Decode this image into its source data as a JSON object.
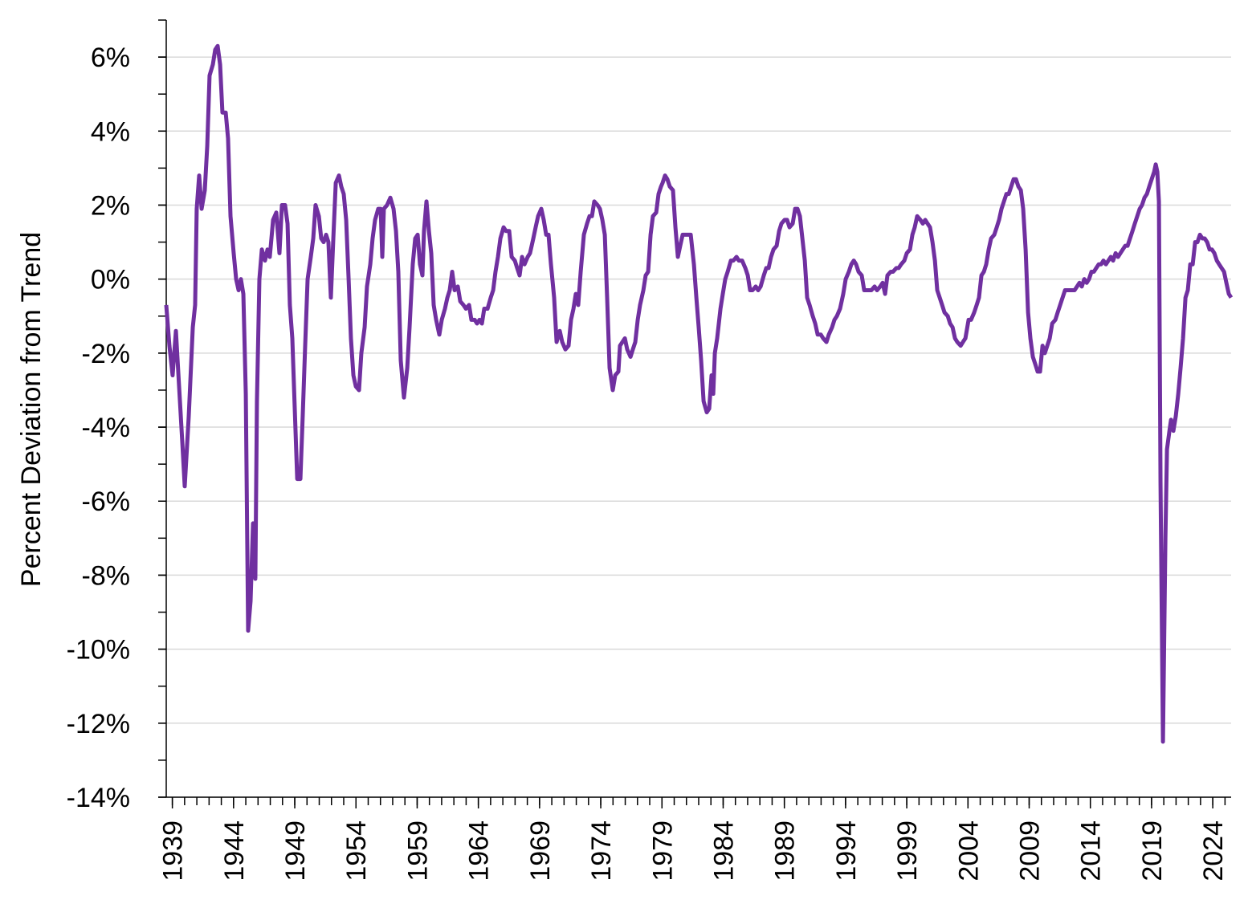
{
  "chart_data": {
    "type": "line",
    "y_label": "Percent Deviation from Trend",
    "color": "#7030a0",
    "xlim": [
      1938.5,
      2025.5
    ],
    "ylim": [
      -14,
      7
    ],
    "xticks": [
      1939,
      1944,
      1949,
      1954,
      1959,
      1964,
      1969,
      1974,
      1979,
      1984,
      1989,
      1994,
      1999,
      2004,
      2009,
      2014,
      2019,
      2024
    ],
    "yticks": [
      {
        "value": -14,
        "label": "-14%"
      },
      {
        "value": -12,
        "label": "-12%"
      },
      {
        "value": -10,
        "label": "-10%"
      },
      {
        "value": -8,
        "label": "-8%"
      },
      {
        "value": -6,
        "label": "-6%"
      },
      {
        "value": -4,
        "label": "-4%"
      },
      {
        "value": -2,
        "label": "-2%"
      },
      {
        "value": 0,
        "label": "0%"
      },
      {
        "value": 2,
        "label": "2%"
      },
      {
        "value": 4,
        "label": "4%"
      },
      {
        "value": 6,
        "label": "6%"
      }
    ],
    "x_minor_step": 1,
    "y_minor_step": 1,
    "grid": true,
    "x": [
      1938.5,
      1938.76,
      1939.02,
      1939.29,
      1939.55,
      1939.81,
      1940.01,
      1940.34,
      1940.67,
      1940.86,
      1940.99,
      1941.19,
      1941.39,
      1941.65,
      1941.85,
      1942.04,
      1942.31,
      1942.5,
      1942.7,
      1942.9,
      1943.09,
      1943.36,
      1943.55,
      1943.75,
      1944.01,
      1944.21,
      1944.41,
      1944.6,
      1944.8,
      1945.0,
      1945.19,
      1945.39,
      1945.59,
      1945.78,
      1945.91,
      1946.11,
      1946.31,
      1946.57,
      1946.77,
      1946.96,
      1947.23,
      1947.49,
      1947.75,
      1947.95,
      1948.21,
      1948.41,
      1948.6,
      1948.8,
      1949.0,
      1949.2,
      1949.46,
      1949.65,
      1949.85,
      1950.05,
      1950.31,
      1950.51,
      1950.7,
      1950.97,
      1951.16,
      1951.36,
      1951.56,
      1951.75,
      1951.95,
      1952.15,
      1952.35,
      1952.61,
      1952.8,
      1953.0,
      1953.2,
      1953.4,
      1953.59,
      1953.79,
      1953.99,
      1954.25,
      1954.44,
      1954.71,
      1954.9,
      1955.17,
      1955.36,
      1955.56,
      1955.82,
      1956.02,
      1956.15,
      1956.28,
      1956.54,
      1956.81,
      1957.07,
      1957.27,
      1957.46,
      1957.66,
      1957.92,
      1958.19,
      1958.38,
      1958.64,
      1958.84,
      1959.04,
      1959.23,
      1959.43,
      1959.56,
      1959.76,
      1959.96,
      1960.15,
      1960.35,
      1960.55,
      1960.81,
      1961.01,
      1961.27,
      1961.47,
      1961.66,
      1961.86,
      1962.06,
      1962.32,
      1962.52,
      1962.78,
      1962.98,
      1963.24,
      1963.43,
      1963.7,
      1963.89,
      1964.09,
      1964.29,
      1964.48,
      1964.75,
      1965.01,
      1965.21,
      1965.4,
      1965.6,
      1965.8,
      1966.06,
      1966.26,
      1966.52,
      1966.72,
      1966.98,
      1967.17,
      1967.37,
      1967.57,
      1967.77,
      1968.03,
      1968.22,
      1968.49,
      1968.68,
      1968.88,
      1969.14,
      1969.34,
      1969.54,
      1969.73,
      1969.93,
      1970.19,
      1970.39,
      1970.65,
      1970.85,
      1971.11,
      1971.37,
      1971.57,
      1971.77,
      1971.96,
      1972.16,
      1972.36,
      1972.62,
      1972.88,
      1973.08,
      1973.28,
      1973.47,
      1973.74,
      1973.93,
      1974.13,
      1974.33,
      1974.52,
      1974.72,
      1974.98,
      1975.18,
      1975.44,
      1975.57,
      1975.77,
      1975.97,
      1976.16,
      1976.43,
      1976.62,
      1976.82,
      1977.02,
      1977.21,
      1977.48,
      1977.67,
      1977.87,
      1978.07,
      1978.26,
      1978.53,
      1978.72,
      1978.92,
      1979.05,
      1979.25,
      1979.44,
      1979.64,
      1979.9,
      1980.1,
      1980.3,
      1980.49,
      1980.69,
      1980.95,
      1981.15,
      1981.35,
      1981.61,
      1981.81,
      1982.0,
      1982.2,
      1982.4,
      1982.66,
      1982.86,
      1983.05,
      1983.19,
      1983.32,
      1983.51,
      1983.78,
      1983.97,
      1984.17,
      1984.37,
      1984.63,
      1984.83,
      1985.09,
      1985.28,
      1985.55,
      1985.81,
      1986.01,
      1986.2,
      1986.4,
      1986.66,
      1986.86,
      1987.06,
      1987.32,
      1987.52,
      1987.71,
      1987.91,
      1988.11,
      1988.37,
      1988.57,
      1988.76,
      1989.02,
      1989.22,
      1989.42,
      1989.68,
      1989.88,
      1990.07,
      1990.27,
      1990.47,
      1990.67,
      1990.86,
      1991.06,
      1991.32,
      1991.52,
      1991.72,
      1991.98,
      1992.17,
      1992.44,
      1992.63,
      1992.9,
      1993.09,
      1993.29,
      1993.55,
      1993.81,
      1994.01,
      1994.27,
      1994.47,
      1994.67,
      1994.86,
      1995.06,
      1995.32,
      1995.52,
      1995.72,
      1995.91,
      1996.11,
      1996.37,
      1996.57,
      1996.83,
      1997.03,
      1997.23,
      1997.42,
      1997.69,
      1997.88,
      1998.15,
      1998.34,
      1998.54,
      1998.8,
      1999.0,
      1999.26,
      1999.46,
      1999.65,
      1999.85,
      2000.11,
      2000.31,
      2000.51,
      2000.7,
      2000.9,
      2001.1,
      2001.3,
      2001.49,
      2001.69,
      2001.89,
      2002.08,
      2002.35,
      2002.54,
      2002.74,
      2002.94,
      2003.13,
      2003.4,
      2003.59,
      2003.79,
      2004.05,
      2004.25,
      2004.51,
      2004.71,
      2004.9,
      2005.1,
      2005.3,
      2005.49,
      2005.69,
      2005.89,
      2006.15,
      2006.35,
      2006.54,
      2006.74,
      2006.94,
      2007.14,
      2007.33,
      2007.53,
      2007.73,
      2007.92,
      2008.12,
      2008.32,
      2008.51,
      2008.71,
      2008.91,
      2009.1,
      2009.3,
      2009.5,
      2009.69,
      2009.89,
      2010.09,
      2010.28,
      2010.48,
      2010.68,
      2010.88,
      2011.14,
      2011.33,
      2011.53,
      2011.73,
      2011.93,
      2012.12,
      2012.32,
      2012.52,
      2012.71,
      2012.91,
      2013.11,
      2013.3,
      2013.5,
      2013.7,
      2013.89,
      2014.09,
      2014.29,
      2014.48,
      2014.68,
      2014.88,
      2015.07,
      2015.27,
      2015.47,
      2015.67,
      2015.86,
      2016.06,
      2016.26,
      2016.45,
      2016.65,
      2016.85,
      2017.04,
      2017.24,
      2017.44,
      2017.63,
      2017.83,
      2018.03,
      2018.22,
      2018.42,
      2018.62,
      2018.81,
      2019.01,
      2019.21,
      2019.34,
      2019.47,
      2019.6,
      2019.73,
      2019.93,
      2020.13,
      2020.26,
      2020.46,
      2020.59,
      2020.78,
      2020.98,
      2021.18,
      2021.37,
      2021.57,
      2021.77,
      2021.96,
      2022.16,
      2022.36,
      2022.56,
      2022.75,
      2022.95,
      2023.15,
      2023.34,
      2023.54,
      2023.74,
      2023.93,
      2024.13,
      2024.33,
      2024.52,
      2024.72,
      2024.92,
      2025.11,
      2025.31,
      2025.5
    ],
    "values": [
      -0.7,
      -1.8,
      -2.6,
      -1.4,
      -2.9,
      -4.4,
      -5.6,
      -3.7,
      -1.3,
      -0.7,
      1.9,
      2.8,
      1.9,
      2.4,
      3.6,
      5.5,
      5.8,
      6.2,
      6.3,
      5.8,
      4.5,
      4.5,
      3.8,
      1.7,
      0.7,
      0.0,
      -0.3,
      0.0,
      -0.4,
      -3.1,
      -9.5,
      -8.7,
      -6.6,
      -8.1,
      -3.3,
      0.0,
      0.8,
      0.5,
      0.8,
      0.6,
      1.6,
      1.8,
      0.7,
      2.0,
      2.0,
      1.5,
      -0.7,
      -1.6,
      -3.5,
      -5.4,
      -5.4,
      -3.7,
      -1.8,
      0.0,
      0.6,
      1.1,
      2.0,
      1.7,
      1.1,
      1.0,
      1.2,
      1.0,
      -0.5,
      1.1,
      2.6,
      2.8,
      2.5,
      2.3,
      1.6,
      0.0,
      -1.6,
      -2.6,
      -2.9,
      -3.0,
      -2.0,
      -1.3,
      -0.2,
      0.4,
      1.1,
      1.6,
      1.9,
      1.9,
      0.6,
      1.9,
      2.0,
      2.2,
      1.9,
      1.3,
      0.2,
      -2.2,
      -3.2,
      -2.4,
      -1.3,
      0.4,
      1.1,
      1.2,
      0.4,
      0.1,
      1.3,
      2.1,
      1.3,
      0.7,
      -0.7,
      -1.1,
      -1.5,
      -1.1,
      -0.8,
      -0.5,
      -0.3,
      0.2,
      -0.3,
      -0.2,
      -0.6,
      -0.7,
      -0.8,
      -0.7,
      -1.1,
      -1.1,
      -1.2,
      -1.1,
      -1.2,
      -0.8,
      -0.8,
      -0.5,
      -0.3,
      0.2,
      0.6,
      1.1,
      1.4,
      1.3,
      1.3,
      0.6,
      0.5,
      0.3,
      0.1,
      0.6,
      0.4,
      0.6,
      0.7,
      1.1,
      1.4,
      1.7,
      1.9,
      1.6,
      1.2,
      1.2,
      0.4,
      -0.5,
      -1.7,
      -1.4,
      -1.7,
      -1.9,
      -1.8,
      -1.1,
      -0.8,
      -0.4,
      -0.7,
      0.2,
      1.2,
      1.5,
      1.7,
      1.7,
      2.1,
      2.0,
      1.9,
      1.6,
      1.2,
      -0.5,
      -2.4,
      -3.0,
      -2.6,
      -2.5,
      -1.8,
      -1.7,
      -1.6,
      -1.9,
      -2.1,
      -1.9,
      -1.7,
      -1.1,
      -0.7,
      -0.3,
      0.1,
      0.2,
      1.2,
      1.7,
      1.8,
      2.3,
      2.5,
      2.6,
      2.8,
      2.7,
      2.5,
      2.4,
      1.4,
      0.6,
      0.9,
      1.2,
      1.2,
      1.2,
      1.2,
      0.4,
      -0.5,
      -1.3,
      -2.2,
      -3.3,
      -3.6,
      -3.5,
      -2.6,
      -3.1,
      -2.0,
      -1.6,
      -0.8,
      -0.4,
      0.0,
      0.2,
      0.5,
      0.5,
      0.6,
      0.5,
      0.5,
      0.3,
      0.1,
      -0.3,
      -0.3,
      -0.2,
      -0.3,
      -0.2,
      0.1,
      0.3,
      0.3,
      0.6,
      0.8,
      0.9,
      1.3,
      1.5,
      1.6,
      1.6,
      1.4,
      1.5,
      1.9,
      1.9,
      1.7,
      1.1,
      0.5,
      -0.5,
      -0.7,
      -1.0,
      -1.2,
      -1.5,
      -1.5,
      -1.6,
      -1.7,
      -1.5,
      -1.3,
      -1.1,
      -1.0,
      -0.8,
      -0.4,
      0.0,
      0.2,
      0.4,
      0.5,
      0.4,
      0.2,
      0.1,
      -0.3,
      -0.3,
      -0.3,
      -0.3,
      -0.2,
      -0.3,
      -0.2,
      -0.1,
      -0.4,
      0.1,
      0.2,
      0.2,
      0.3,
      0.3,
      0.4,
      0.5,
      0.7,
      0.8,
      1.2,
      1.4,
      1.7,
      1.6,
      1.5,
      1.6,
      1.5,
      1.4,
      1.0,
      0.5,
      -0.3,
      -0.5,
      -0.7,
      -0.9,
      -1.0,
      -1.2,
      -1.3,
      -1.6,
      -1.7,
      -1.8,
      -1.7,
      -1.6,
      -1.1,
      -1.1,
      -0.9,
      -0.7,
      -0.5,
      0.1,
      0.2,
      0.4,
      0.8,
      1.1,
      1.2,
      1.4,
      1.6,
      1.9,
      2.1,
      2.3,
      2.3,
      2.5,
      2.7,
      2.7,
      2.5,
      2.4,
      1.9,
      0.8,
      -0.9,
      -1.6,
      -2.1,
      -2.3,
      -2.5,
      -2.5,
      -1.8,
      -2.0,
      -1.8,
      -1.6,
      -1.2,
      -1.1,
      -0.9,
      -0.7,
      -0.5,
      -0.3,
      -0.3,
      -0.3,
      -0.3,
      -0.3,
      -0.2,
      -0.1,
      -0.2,
      0.0,
      -0.1,
      0.0,
      0.2,
      0.2,
      0.3,
      0.4,
      0.4,
      0.5,
      0.4,
      0.5,
      0.6,
      0.5,
      0.7,
      0.6,
      0.7,
      0.8,
      0.9,
      0.9,
      1.1,
      1.3,
      1.5,
      1.7,
      1.9,
      2.0,
      2.2,
      2.3,
      2.5,
      2.7,
      2.9,
      3.1,
      2.9,
      2.1,
      -5.5,
      -12.5,
      -7.0,
      -4.6,
      -4.1,
      -3.8,
      -4.1,
      -3.7,
      -3.1,
      -2.4,
      -1.6,
      -0.5,
      -0.3,
      0.4,
      0.4,
      1.0,
      1.0,
      1.2,
      1.1,
      1.1,
      1.0,
      0.8,
      0.8,
      0.7,
      0.5,
      0.4,
      0.3,
      0.2,
      -0.1,
      -0.4,
      -0.5
    ]
  }
}
